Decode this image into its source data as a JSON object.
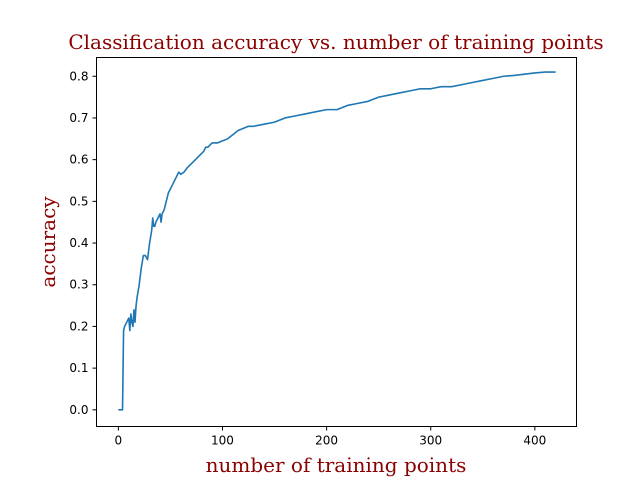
{
  "chart_data": {
    "type": "line",
    "title": "Classification accuracy vs. number of training points",
    "xlabel": "number of training points",
    "ylabel": "accuracy",
    "xlim": [
      -21,
      440
    ],
    "ylim": [
      -0.04,
      0.845
    ],
    "xticks": [
      0,
      100,
      200,
      300,
      400
    ],
    "xtick_labels": [
      "0",
      "100",
      "200",
      "300",
      "400"
    ],
    "yticks": [
      0.0,
      0.1,
      0.2,
      0.3,
      0.4,
      0.5,
      0.6,
      0.7,
      0.8
    ],
    "ytick_labels": [
      "0.0",
      "0.1",
      "0.2",
      "0.3",
      "0.4",
      "0.5",
      "0.6",
      "0.7",
      "0.8"
    ],
    "grid": false,
    "series": [
      {
        "color": "#1f77b4",
        "x": [
          0,
          2,
          4,
          5,
          6,
          8,
          10,
          11,
          12,
          13,
          14,
          15,
          16,
          17,
          18,
          20,
          22,
          24,
          26,
          28,
          30,
          32,
          33,
          34,
          35,
          36,
          38,
          40,
          41,
          42,
          44,
          46,
          48,
          50,
          52,
          54,
          56,
          58,
          60,
          63,
          66,
          70,
          74,
          78,
          82,
          84,
          86,
          90,
          95,
          100,
          105,
          110,
          115,
          120,
          125,
          130,
          140,
          150,
          160,
          170,
          180,
          190,
          200,
          210,
          220,
          230,
          240,
          250,
          260,
          270,
          280,
          290,
          300,
          310,
          320,
          330,
          340,
          350,
          360,
          370,
          380,
          390,
          400,
          410,
          420
        ],
        "y": [
          0.0,
          0.0,
          0.0,
          0.19,
          0.2,
          0.21,
          0.22,
          0.19,
          0.23,
          0.21,
          0.2,
          0.24,
          0.21,
          0.25,
          0.27,
          0.3,
          0.34,
          0.37,
          0.37,
          0.36,
          0.4,
          0.43,
          0.46,
          0.44,
          0.44,
          0.45,
          0.46,
          0.47,
          0.45,
          0.47,
          0.48,
          0.5,
          0.52,
          0.53,
          0.54,
          0.55,
          0.56,
          0.57,
          0.565,
          0.57,
          0.58,
          0.59,
          0.6,
          0.61,
          0.62,
          0.63,
          0.63,
          0.64,
          0.64,
          0.645,
          0.65,
          0.66,
          0.67,
          0.675,
          0.68,
          0.68,
          0.685,
          0.69,
          0.7,
          0.705,
          0.71,
          0.715,
          0.72,
          0.72,
          0.73,
          0.735,
          0.74,
          0.75,
          0.755,
          0.76,
          0.765,
          0.77,
          0.77,
          0.775,
          0.775,
          0.78,
          0.785,
          0.79,
          0.795,
          0.8,
          0.802,
          0.805,
          0.808,
          0.81,
          0.81
        ]
      }
    ]
  }
}
